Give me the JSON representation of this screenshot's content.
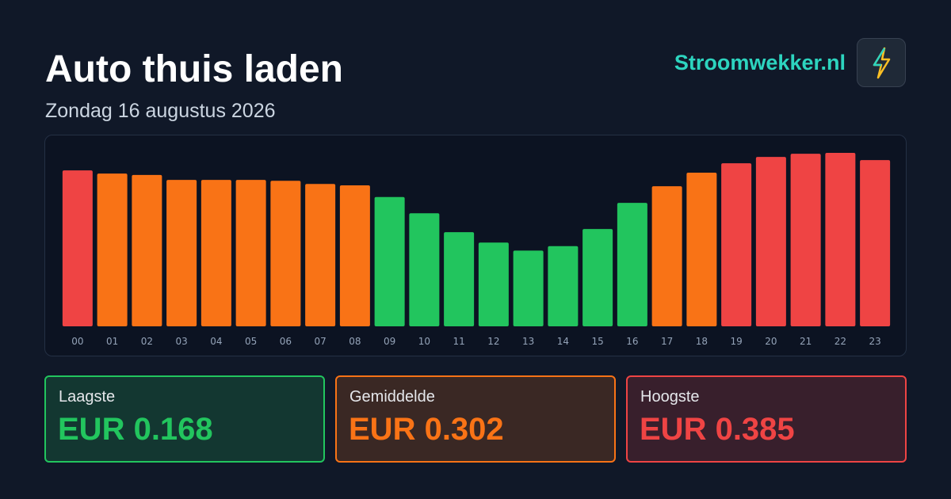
{
  "header": {
    "title": "Auto thuis laden",
    "subtitle": "Zondag 16 augustus 2026",
    "brand": "Stroomwekker.nl"
  },
  "chart_data": {
    "type": "bar",
    "categories": [
      "00",
      "01",
      "02",
      "03",
      "04",
      "05",
      "06",
      "07",
      "08",
      "09",
      "10",
      "11",
      "12",
      "13",
      "14",
      "15",
      "16",
      "17",
      "18",
      "19",
      "20",
      "21",
      "22",
      "23"
    ],
    "values": [
      0.346,
      0.339,
      0.336,
      0.325,
      0.325,
      0.325,
      0.323,
      0.316,
      0.313,
      0.287,
      0.251,
      0.209,
      0.186,
      0.168,
      0.178,
      0.216,
      0.274,
      0.311,
      0.341,
      0.362,
      0.376,
      0.383,
      0.385,
      0.369
    ],
    "colors": [
      "#ef4444",
      "#f97316",
      "#f97316",
      "#f97316",
      "#f97316",
      "#f97316",
      "#f97316",
      "#f97316",
      "#f97316",
      "#22c55e",
      "#22c55e",
      "#22c55e",
      "#22c55e",
      "#22c55e",
      "#22c55e",
      "#22c55e",
      "#22c55e",
      "#f97316",
      "#f97316",
      "#ef4444",
      "#ef4444",
      "#ef4444",
      "#ef4444",
      "#ef4444"
    ]
  },
  "stats": [
    {
      "label": "Laagste",
      "value": 0.168,
      "value_label": "EUR 0.168",
      "color": "#22c55e"
    },
    {
      "label": "Gemiddelde",
      "value": 0.302,
      "value_label": "EUR 0.302",
      "color": "#f97316"
    },
    {
      "label": "Hoogste",
      "value": 0.385,
      "value_label": "EUR 0.385",
      "color": "#ef4444"
    }
  ]
}
